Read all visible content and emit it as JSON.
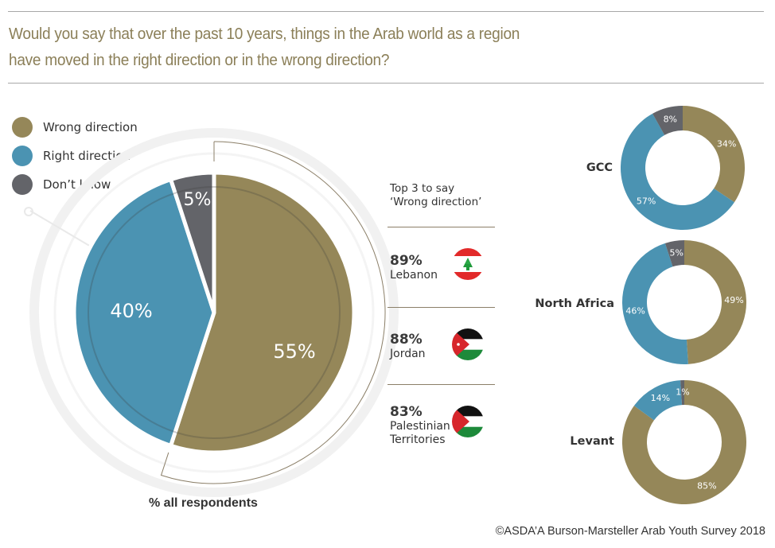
{
  "title": "Would you say that over the past 10 years, things in the Arab world as a region have moved in the right direction or in the wrong direction?",
  "title_lines": [
    "Would you say that over the past 10 years, things in the Arab world as a region",
    "have moved in the right direction or in the wrong direction?"
  ],
  "colors": {
    "wrong": "#958759",
    "right": "#4b93b2",
    "dont_know": "#636469",
    "title": "#8b7f58"
  },
  "legend": [
    {
      "label": "Wrong direction",
      "color": "#958759",
      "icon": "circle-swatch"
    },
    {
      "label": "Right direction",
      "color": "#4b93b2",
      "icon": "circle-swatch"
    },
    {
      "label": "Don’t know",
      "color": "#636469",
      "icon": "circle-swatch"
    }
  ],
  "chart_data": [
    {
      "type": "pie",
      "title": "% all respondents",
      "categories": [
        "Wrong direction",
        "Right direction",
        "Don’t know"
      ],
      "values": [
        55,
        40,
        5
      ],
      "labels": [
        "55%",
        "40%",
        "5%"
      ],
      "start": "top",
      "direction": "clockwise"
    },
    {
      "type": "pie",
      "subtype": "donut",
      "title": "GCC",
      "categories": [
        "Wrong direction",
        "Right direction",
        "Don’t know"
      ],
      "values": [
        34,
        57,
        8
      ],
      "labels": [
        "34%",
        "57%",
        "8%"
      ]
    },
    {
      "type": "pie",
      "subtype": "donut",
      "title": "North Africa",
      "categories": [
        "Wrong direction",
        "Right direction",
        "Don’t know"
      ],
      "values": [
        49,
        46,
        5
      ],
      "labels": [
        "49%",
        "46%",
        "5%"
      ]
    },
    {
      "type": "pie",
      "subtype": "donut",
      "title": "Levant",
      "categories": [
        "Wrong direction",
        "Right direction",
        "Don’t know"
      ],
      "values": [
        85,
        14,
        1
      ],
      "labels": [
        "85%",
        "14%",
        "1%"
      ]
    }
  ],
  "top3": {
    "title_line1": "Top 3 to say",
    "title_line2": "‘Wrong direction’",
    "countries": [
      {
        "value": "89%",
        "name_lines": [
          "Lebanon"
        ],
        "flag": "lebanon-flag-icon"
      },
      {
        "value": "88%",
        "name_lines": [
          "Jordan"
        ],
        "flag": "jordan-flag-icon"
      },
      {
        "value": "83%",
        "name_lines": [
          "Palestinian",
          "Territories"
        ],
        "flag": "palestine-flag-icon"
      }
    ]
  },
  "respondents_label": "% all respondents",
  "footer": "©ASDA’A Burson-Marsteller Arab Youth Survey 2018"
}
